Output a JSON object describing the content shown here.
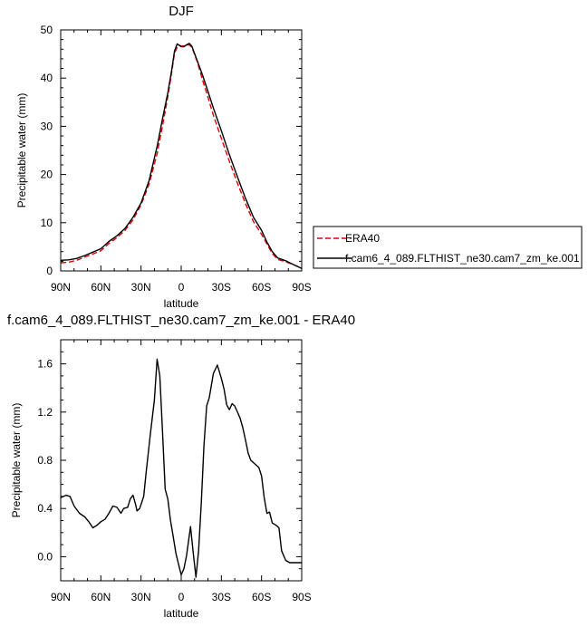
{
  "chart_data": [
    {
      "type": "line",
      "title": "DJF",
      "xlabel": "latitude",
      "ylabel": "Precipitable water (mm)",
      "xlim": [
        90,
        -90
      ],
      "ylim": [
        0,
        50
      ],
      "x_ticks": [
        90,
        60,
        30,
        0,
        -30,
        -60,
        -90
      ],
      "x_tick_labels": [
        "90N",
        "60N",
        "30N",
        "0",
        "30S",
        "60S",
        "90S"
      ],
      "y_ticks": [
        0,
        10,
        20,
        30,
        40,
        50
      ],
      "y_tick_labels": [
        "0",
        "10",
        "20",
        "30",
        "40",
        "50"
      ],
      "legend_position": "right, outside plot",
      "series": [
        {
          "name": "ERA40",
          "color": "#dd0000",
          "dash": "dashed",
          "x": [
            90,
            84,
            78,
            72,
            66,
            60,
            54,
            48,
            42,
            36,
            30,
            24,
            18,
            14,
            10,
            7,
            5,
            3,
            1,
            0,
            -2,
            -4,
            -6,
            -8,
            -12,
            -16,
            -20,
            -24,
            -30,
            -36,
            -42,
            -48,
            -54,
            -60,
            -64,
            -68,
            -72,
            -78,
            -84,
            -90
          ],
          "y": [
            1.7,
            1.8,
            2.2,
            2.9,
            3.5,
            4.2,
            5.7,
            6.9,
            8.4,
            10.6,
            13.7,
            18,
            24.3,
            30,
            36.1,
            41.4,
            45.2,
            46.4,
            46.8,
            46.6,
            46.7,
            46.9,
            46.9,
            46.4,
            43.4,
            39.6,
            36,
            32.3,
            27.5,
            22.7,
            18.2,
            14,
            10.2,
            7.6,
            5.6,
            3.6,
            2.4,
            1.9,
            1.3,
            0.5
          ]
        },
        {
          "name": "f.cam6_4_089.FLTHIST_ne30.cam7_zm_ke.001",
          "color": "#000000",
          "dash": "solid",
          "x": [
            90,
            84,
            78,
            72,
            66,
            60,
            54,
            48,
            42,
            36,
            30,
            24,
            18,
            14,
            10,
            7,
            5,
            3,
            1,
            0,
            -2,
            -4,
            -6,
            -8,
            -12,
            -16,
            -20,
            -24,
            -30,
            -36,
            -42,
            -48,
            -54,
            -60,
            -64,
            -68,
            -72,
            -78,
            -84,
            -90
          ],
          "y": [
            2.2,
            2.3,
            2.6,
            3.2,
            3.9,
            4.6,
            6.1,
            7.3,
            8.8,
            11.1,
            14.1,
            18.7,
            25.8,
            31.5,
            36.9,
            41.9,
            45.6,
            47.1,
            46.7,
            46.5,
            46.5,
            46.9,
            47.2,
            46.6,
            43.6,
            40.6,
            37.2,
            33.8,
            29.1,
            24.1,
            19.5,
            15.1,
            11.1,
            8.4,
            6,
            4,
            2.7,
            2.1,
            1.3,
            0.5
          ]
        }
      ]
    },
    {
      "type": "line",
      "title": "f.cam6_4_089.FLTHIST_ne30.cam7_zm_ke.001 - ERA40",
      "xlabel": "latitude",
      "ylabel": "Precipitable water (mm)",
      "xlim": [
        90,
        -90
      ],
      "ylim": [
        -0.2,
        1.8
      ],
      "x_ticks": [
        90,
        60,
        30,
        0,
        -30,
        -60,
        -90
      ],
      "x_tick_labels": [
        "90N",
        "60N",
        "30N",
        "0",
        "30S",
        "60S",
        "90S"
      ],
      "y_ticks": [
        0,
        0.4,
        0.8,
        1.2,
        1.6
      ],
      "y_tick_labels": [
        "0.0",
        "0.4",
        "0.8",
        "1.2",
        "1.6"
      ],
      "series": [
        {
          "color": "#000000",
          "x": [
            90,
            86,
            83,
            80,
            76,
            72,
            69,
            66,
            63,
            60,
            57,
            54,
            51,
            48,
            45,
            43,
            40,
            38,
            36,
            34,
            33,
            31,
            28,
            26,
            23,
            20,
            18,
            16,
            14,
            12,
            10,
            8,
            6,
            4,
            2,
            0,
            -2,
            -4,
            -7,
            -9,
            -11,
            -13,
            -15,
            -17,
            -19,
            -21,
            -24,
            -27,
            -30,
            -32,
            -34,
            -36,
            -38,
            -40,
            -42,
            -44,
            -46,
            -48,
            -50,
            -52,
            -55,
            -58,
            -60,
            -62,
            -64,
            -66,
            -68,
            -71,
            -73,
            -75,
            -78,
            -81,
            -83,
            -85,
            -88,
            -90
          ],
          "y": [
            0.49,
            0.51,
            0.5,
            0.42,
            0.36,
            0.33,
            0.29,
            0.24,
            0.26,
            0.29,
            0.31,
            0.36,
            0.42,
            0.41,
            0.36,
            0.4,
            0.41,
            0.48,
            0.51,
            0.43,
            0.38,
            0.4,
            0.5,
            0.72,
            1.02,
            1.3,
            1.64,
            1.5,
            1.05,
            0.56,
            0.48,
            0.3,
            0.17,
            0.03,
            -0.06,
            -0.15,
            -0.1,
            0.01,
            0.25,
            0.03,
            -0.17,
            0.05,
            0.45,
            0.92,
            1.25,
            1.32,
            1.52,
            1.59,
            1.48,
            1.39,
            1.26,
            1.22,
            1.27,
            1.25,
            1.2,
            1.15,
            1.07,
            0.97,
            0.86,
            0.8,
            0.77,
            0.74,
            0.67,
            0.49,
            0.36,
            0.37,
            0.28,
            0.26,
            0.24,
            0.05,
            -0.03,
            -0.05,
            -0.05,
            -0.05,
            -0.05,
            -0.05
          ]
        }
      ]
    }
  ]
}
